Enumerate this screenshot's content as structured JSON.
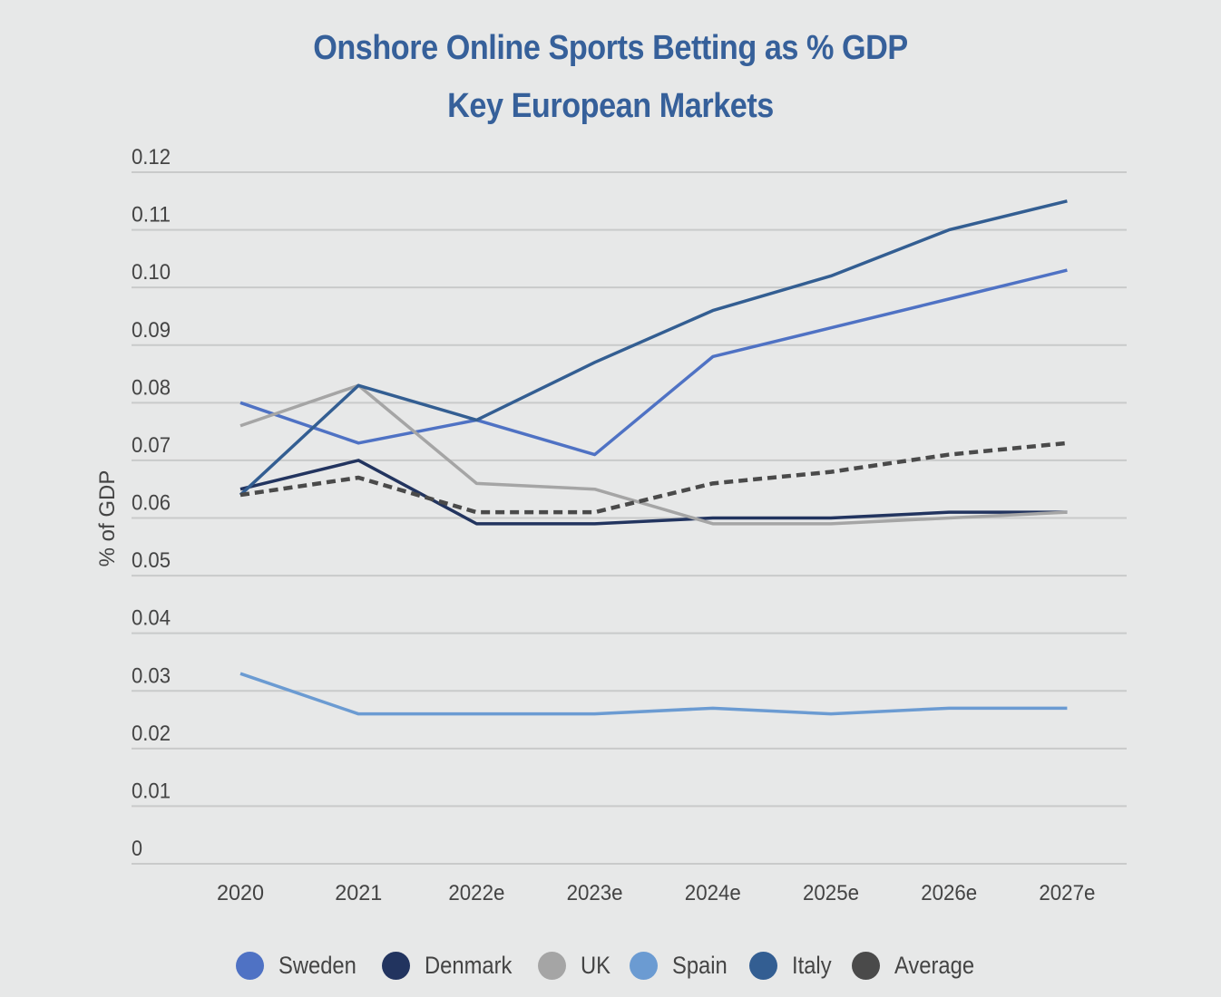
{
  "chart_data": {
    "type": "line",
    "title": "Onshore Online Sports Betting as % GDP",
    "subtitle": "Key European Markets",
    "xlabel": "",
    "ylabel": "% of GDP",
    "ylim": [
      0,
      0.12
    ],
    "yticks": [
      "0",
      "0.01",
      "0.02",
      "0.03",
      "0.04",
      "0.05",
      "0.06",
      "0.07",
      "0.08",
      "0.09",
      "0.10",
      "0.11",
      "0.12"
    ],
    "ytick_values": [
      0,
      0.01,
      0.02,
      0.03,
      0.04,
      0.05,
      0.06,
      0.07,
      0.08,
      0.09,
      0.1,
      0.11,
      0.12
    ],
    "grid": true,
    "legend_position": "bottom",
    "categories": [
      "2020",
      "2021",
      "2022e",
      "2023e",
      "2024e",
      "2025e",
      "2026e",
      "2027e"
    ],
    "series": [
      {
        "name": "Sweden",
        "color": "#4f72c4",
        "dashed": false,
        "values": [
          0.08,
          0.073,
          0.077,
          0.071,
          0.088,
          0.093,
          0.098,
          0.103
        ]
      },
      {
        "name": "Denmark",
        "color": "#22345f",
        "dashed": false,
        "values": [
          0.065,
          0.07,
          0.059,
          0.059,
          0.06,
          0.06,
          0.061,
          0.061
        ]
      },
      {
        "name": "UK",
        "color": "#a5a5a5",
        "dashed": false,
        "values": [
          0.076,
          0.083,
          0.066,
          0.065,
          0.059,
          0.059,
          0.06,
          0.061
        ]
      },
      {
        "name": "Spain",
        "color": "#6b9bd2",
        "dashed": false,
        "values": [
          0.033,
          0.026,
          0.026,
          0.026,
          0.027,
          0.026,
          0.027,
          0.027
        ]
      },
      {
        "name": "Italy",
        "color": "#335e92",
        "dashed": false,
        "values": [
          0.064,
          0.083,
          0.077,
          0.087,
          0.096,
          0.102,
          0.11,
          0.115
        ]
      },
      {
        "name": "Average",
        "color": "#4a4a4a",
        "dashed": true,
        "values": [
          0.064,
          0.067,
          0.061,
          0.061,
          0.066,
          0.068,
          0.071,
          0.073
        ]
      }
    ]
  }
}
